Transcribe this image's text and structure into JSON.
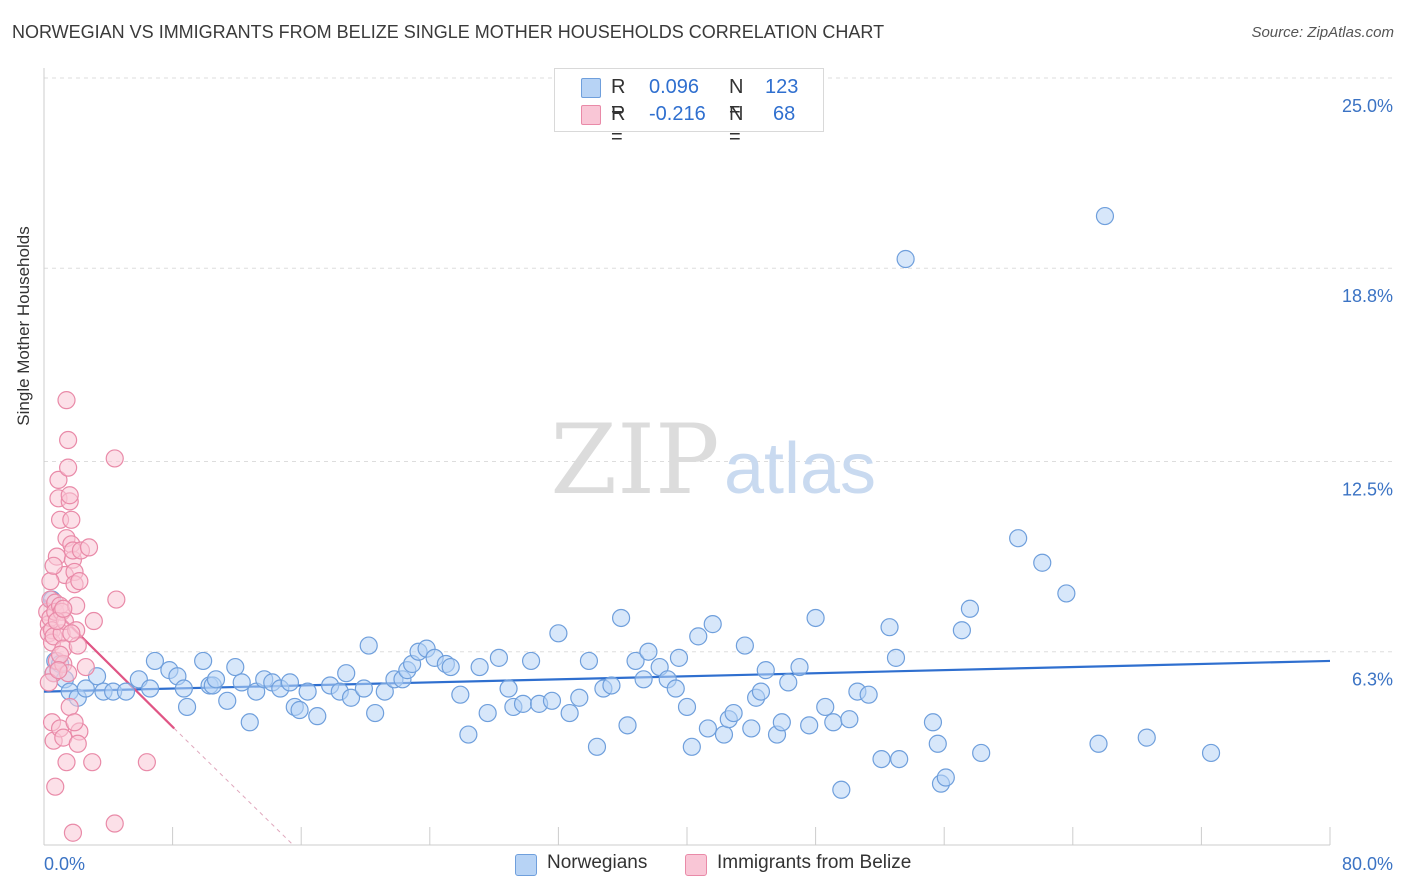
{
  "header": {
    "title": "NORWEGIAN VS IMMIGRANTS FROM BELIZE SINGLE MOTHER HOUSEHOLDS CORRELATION CHART",
    "source": "Source: ZipAtlas.com"
  },
  "watermark": {
    "text_zip": "ZIP",
    "text_atlas": "atlas"
  },
  "legend": {
    "rows": [
      {
        "r_label": "R =",
        "r_value": "0.096",
        "n_label": "N =",
        "n_value": "123",
        "color": "#b7d3f5",
        "border": "#6f9fdc"
      },
      {
        "r_label": "R =",
        "r_value": "-0.216",
        "n_label": "N =",
        "n_value": "68",
        "color": "#f9c6d6",
        "border": "#e98aa8"
      }
    ]
  },
  "bottom_legend": {
    "items": [
      {
        "label": "Norwegians",
        "color": "#b7d3f5",
        "border": "#6f9fdc"
      },
      {
        "label": "Immigrants from Belize",
        "color": "#f9c6d6",
        "border": "#e98aa8"
      }
    ]
  },
  "chart_data": {
    "type": "scatter",
    "title": "NORWEGIAN VS IMMIGRANTS FROM BELIZE SINGLE MOTHER HOUSEHOLDS CORRELATION CHART",
    "xlabel": "",
    "ylabel": "Single Mother Households",
    "xlim": [
      0,
      80
    ],
    "ylim": [
      0,
      25
    ],
    "x_tick_labels": [
      "0.0%",
      "80.0%"
    ],
    "y_ticks": [
      6.3,
      12.5,
      18.8,
      25.0
    ],
    "y_tick_labels": [
      "6.3%",
      "12.5%",
      "18.8%",
      "25.0%"
    ],
    "grid": true,
    "legend_position": "top-center",
    "series": [
      {
        "name": "Norwegians",
        "color": "#6f9fdc",
        "fill": "#b7d3f5",
        "trend": {
          "x": [
            0,
            80
          ],
          "y": [
            5.0,
            6.0
          ],
          "color": "#2f6fcf"
        },
        "points": [
          [
            0.5,
            8.0
          ],
          [
            0.6,
            5.6
          ],
          [
            0.7,
            6.0
          ],
          [
            1.0,
            5.9
          ],
          [
            1.3,
            5.4
          ],
          [
            1.6,
            5.0
          ],
          [
            2.1,
            4.8
          ],
          [
            2.6,
            5.1
          ],
          [
            3.3,
            5.5
          ],
          [
            3.7,
            5.0
          ],
          [
            4.3,
            5.0
          ],
          [
            5.1,
            5.0
          ],
          [
            5.9,
            5.4
          ],
          [
            6.6,
            5.1
          ],
          [
            6.9,
            6.0
          ],
          [
            7.8,
            5.7
          ],
          [
            8.3,
            5.5
          ],
          [
            8.7,
            5.1
          ],
          [
            8.9,
            4.5
          ],
          [
            9.9,
            6.0
          ],
          [
            10.3,
            5.2
          ],
          [
            10.5,
            5.2
          ],
          [
            10.7,
            5.4
          ],
          [
            11.4,
            4.7
          ],
          [
            11.9,
            5.8
          ],
          [
            12.3,
            5.3
          ],
          [
            12.8,
            4.0
          ],
          [
            13.2,
            5.0
          ],
          [
            13.7,
            5.4
          ],
          [
            14.2,
            5.3
          ],
          [
            14.7,
            5.1
          ],
          [
            15.3,
            5.3
          ],
          [
            15.6,
            4.5
          ],
          [
            15.9,
            4.4
          ],
          [
            16.4,
            5.0
          ],
          [
            17.0,
            4.2
          ],
          [
            17.8,
            5.2
          ],
          [
            18.4,
            5.0
          ],
          [
            18.8,
            5.6
          ],
          [
            19.1,
            4.8
          ],
          [
            19.9,
            5.1
          ],
          [
            20.2,
            6.5
          ],
          [
            20.6,
            4.3
          ],
          [
            21.2,
            5.0
          ],
          [
            21.8,
            5.4
          ],
          [
            22.3,
            5.4
          ],
          [
            22.6,
            5.7
          ],
          [
            22.9,
            5.9
          ],
          [
            23.3,
            6.3
          ],
          [
            23.8,
            6.4
          ],
          [
            24.3,
            6.1
          ],
          [
            25.0,
            5.9
          ],
          [
            25.3,
            5.8
          ],
          [
            25.9,
            4.9
          ],
          [
            26.4,
            3.6
          ],
          [
            27.1,
            5.8
          ],
          [
            27.6,
            4.3
          ],
          [
            28.3,
            6.1
          ],
          [
            28.9,
            5.1
          ],
          [
            29.2,
            4.5
          ],
          [
            29.8,
            4.6
          ],
          [
            30.3,
            6.0
          ],
          [
            30.8,
            4.6
          ],
          [
            31.6,
            4.7
          ],
          [
            32.0,
            6.9
          ],
          [
            32.7,
            4.3
          ],
          [
            33.3,
            4.8
          ],
          [
            33.9,
            6.0
          ],
          [
            34.4,
            3.2
          ],
          [
            34.8,
            5.1
          ],
          [
            35.3,
            5.2
          ],
          [
            35.9,
            7.4
          ],
          [
            36.3,
            3.9
          ],
          [
            36.8,
            6.0
          ],
          [
            37.3,
            5.4
          ],
          [
            37.6,
            6.3
          ],
          [
            38.3,
            5.8
          ],
          [
            38.8,
            5.4
          ],
          [
            39.3,
            5.1
          ],
          [
            39.5,
            6.1
          ],
          [
            40.0,
            4.5
          ],
          [
            40.3,
            3.2
          ],
          [
            40.7,
            6.8
          ],
          [
            41.3,
            3.8
          ],
          [
            41.6,
            7.2
          ],
          [
            42.3,
            3.6
          ],
          [
            42.6,
            4.1
          ],
          [
            42.9,
            4.3
          ],
          [
            43.6,
            6.5
          ],
          [
            44.0,
            3.8
          ],
          [
            44.3,
            4.8
          ],
          [
            44.6,
            5.0
          ],
          [
            44.9,
            5.7
          ],
          [
            45.6,
            3.6
          ],
          [
            45.9,
            4.0
          ],
          [
            46.3,
            5.3
          ],
          [
            47.0,
            5.8
          ],
          [
            47.6,
            3.9
          ],
          [
            48.0,
            7.4
          ],
          [
            48.6,
            4.5
          ],
          [
            49.1,
            4.0
          ],
          [
            49.6,
            1.8
          ],
          [
            50.1,
            4.1
          ],
          [
            50.6,
            5.0
          ],
          [
            51.3,
            4.9
          ],
          [
            52.1,
            2.8
          ],
          [
            52.6,
            7.1
          ],
          [
            53.0,
            6.1
          ],
          [
            53.2,
            2.8
          ],
          [
            55.3,
            4.0
          ],
          [
            55.6,
            3.3
          ],
          [
            55.8,
            2.0
          ],
          [
            56.1,
            2.2
          ],
          [
            57.1,
            7.0
          ],
          [
            57.6,
            7.7
          ],
          [
            58.3,
            3.0
          ],
          [
            60.6,
            10.0
          ],
          [
            62.1,
            9.2
          ],
          [
            63.6,
            8.2
          ],
          [
            65.6,
            3.3
          ],
          [
            68.6,
            3.5
          ],
          [
            72.6,
            3.0
          ],
          [
            53.6,
            19.1
          ],
          [
            66.0,
            20.5
          ]
        ]
      },
      {
        "name": "Immigrants from Belize",
        "color": "#e98aa8",
        "fill": "#f9c6d6",
        "trend": {
          "x": [
            0,
            8.1
          ],
          "y": [
            8.0,
            3.8
          ],
          "dash_to": [
            15.5,
            0
          ],
          "color": "#e05585"
        },
        "points": [
          [
            0.2,
            7.6
          ],
          [
            0.3,
            7.2
          ],
          [
            0.3,
            6.9
          ],
          [
            0.4,
            8.0
          ],
          [
            0.4,
            7.4
          ],
          [
            0.5,
            7.0
          ],
          [
            0.5,
            6.6
          ],
          [
            0.6,
            6.8
          ],
          [
            0.6,
            5.6
          ],
          [
            0.7,
            7.9
          ],
          [
            0.7,
            7.6
          ],
          [
            0.8,
            6.0
          ],
          [
            0.8,
            9.4
          ],
          [
            0.9,
            11.9
          ],
          [
            0.9,
            11.3
          ],
          [
            1.0,
            10.6
          ],
          [
            1.0,
            7.8
          ],
          [
            1.1,
            7.6
          ],
          [
            1.1,
            6.9
          ],
          [
            1.2,
            6.4
          ],
          [
            1.2,
            5.9
          ],
          [
            1.3,
            7.3
          ],
          [
            1.3,
            8.8
          ],
          [
            1.4,
            10.0
          ],
          [
            1.4,
            14.5
          ],
          [
            1.5,
            13.2
          ],
          [
            1.5,
            12.3
          ],
          [
            1.6,
            11.2
          ],
          [
            1.6,
            11.4
          ],
          [
            1.7,
            10.6
          ],
          [
            1.7,
            9.8
          ],
          [
            1.8,
            9.3
          ],
          [
            1.8,
            9.6
          ],
          [
            1.9,
            8.9
          ],
          [
            1.9,
            8.5
          ],
          [
            2.0,
            7.8
          ],
          [
            2.0,
            7.0
          ],
          [
            2.1,
            6.5
          ],
          [
            2.2,
            8.6
          ],
          [
            2.3,
            9.6
          ],
          [
            0.5,
            4.0
          ],
          [
            0.6,
            3.4
          ],
          [
            0.7,
            1.9
          ],
          [
            1.0,
            3.8
          ],
          [
            1.2,
            3.5
          ],
          [
            1.4,
            2.7
          ],
          [
            1.6,
            4.5
          ],
          [
            1.8,
            0.4
          ],
          [
            2.2,
            3.7
          ],
          [
            2.6,
            5.8
          ],
          [
            2.8,
            9.7
          ],
          [
            3.0,
            2.7
          ],
          [
            3.1,
            7.3
          ],
          [
            4.4,
            12.6
          ],
          [
            4.5,
            8.0
          ],
          [
            6.4,
            2.7
          ],
          [
            4.4,
            0.7
          ],
          [
            0.3,
            5.3
          ],
          [
            0.4,
            8.6
          ],
          [
            0.6,
            9.1
          ],
          [
            0.8,
            7.3
          ],
          [
            1.0,
            6.2
          ],
          [
            1.2,
            7.7
          ],
          [
            1.5,
            5.6
          ],
          [
            1.7,
            6.9
          ],
          [
            1.9,
            4.0
          ],
          [
            2.1,
            3.3
          ],
          [
            0.9,
            5.7
          ]
        ]
      }
    ]
  },
  "axis": {
    "ytitle": "Single Mother Households"
  }
}
